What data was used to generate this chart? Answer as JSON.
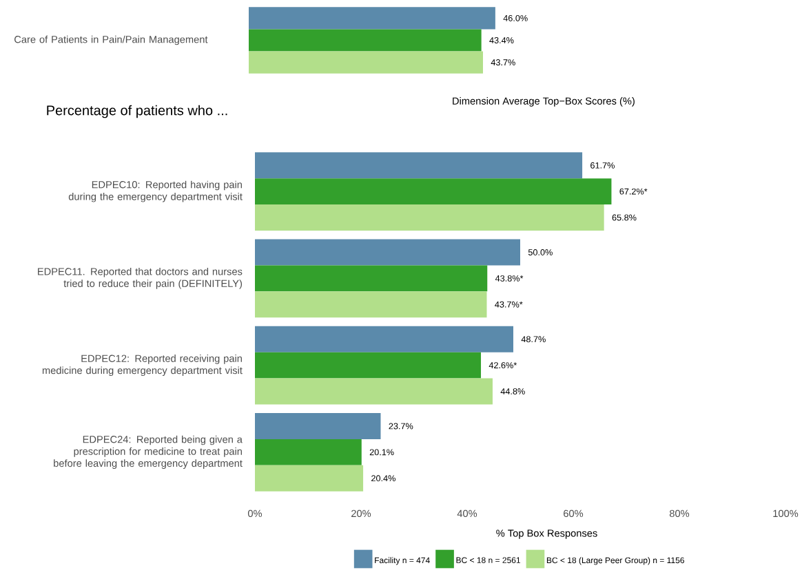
{
  "chart_data": [
    {
      "type": "bar",
      "orientation": "horizontal",
      "categories": [
        "Care of Patients in Pain/Pain Management"
      ],
      "xlabel": "Dimension Average Top−Box Scores (%)",
      "xlim": [
        0,
        100
      ],
      "tick_labels": "y",
      "legend": false,
      "series": [
        {
          "color": "#5b8aab",
          "values": [
            46.0
          ],
          "value_labels": [
            "46.0%"
          ]
        },
        {
          "color": "#33a02c",
          "values": [
            43.4
          ],
          "value_labels": [
            "43.4%"
          ]
        },
        {
          "color": "#b2df8a",
          "values": [
            43.7
          ],
          "value_labels": [
            "43.7%"
          ]
        }
      ]
    },
    {
      "type": "bar",
      "orientation": "horizontal",
      "title": "Percentage of patients who ...",
      "categories": [
        "EDPEC10: Reported having pain during the emergency department visit",
        "EDPEC11. Reported that doctors and nurses tried to reduce their pain (DEFINITELY)",
        "EDPEC12: Reported receiving pain medicine during emergency department visit",
        "EDPEC24: Reported being given a prescription for medicine to treat pain before leaving the emergency department"
      ],
      "xlabel": "% Top Box Responses",
      "xlim": [
        0,
        100
      ],
      "xticks": [
        {
          "value": 0,
          "label": "0%"
        },
        {
          "value": 20,
          "label": "20%"
        },
        {
          "value": 40,
          "label": "40%"
        },
        {
          "value": 60,
          "label": "60%"
        },
        {
          "value": 80,
          "label": "80%"
        },
        {
          "value": 100,
          "label": "100%"
        }
      ],
      "legend": "bottom",
      "series": [
        {
          "name": "Facility n = 474",
          "color": "#5b8aab",
          "values": [
            61.7,
            50.0,
            48.7,
            23.7
          ],
          "value_labels": [
            "61.7%",
            "50.0%",
            "48.7%",
            "23.7%"
          ]
        },
        {
          "name": "BC < 18 n = 2561",
          "color": "#33a02c",
          "values": [
            67.2,
            43.8,
            42.6,
            20.1
          ],
          "value_labels": [
            "67.2%*",
            "43.8%*",
            "42.6%*",
            "20.1%"
          ]
        },
        {
          "name": "BC < 18 (Large Peer Group) n = 1156",
          "color": "#b2df8a",
          "values": [
            65.8,
            43.7,
            44.8,
            20.4
          ],
          "value_labels": [
            "65.8%",
            "43.7%*",
            "44.8%",
            "20.4%"
          ]
        }
      ]
    }
  ]
}
